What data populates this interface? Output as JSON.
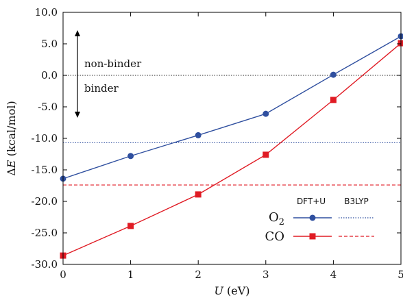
{
  "chart_data": {
    "type": "line",
    "xlabel": "U (eV)",
    "ylabel": "ΔE (kcal/mol)",
    "xlim": [
      0,
      5
    ],
    "ylim": [
      -30,
      10
    ],
    "xticks": [
      0,
      1,
      2,
      3,
      4,
      5
    ],
    "yticks": [
      10,
      5,
      0,
      -5,
      -10,
      -15,
      -20,
      -25,
      -30
    ],
    "ytick_labels": [
      "10.0",
      "5.0",
      "0.0",
      "-5.0",
      "-10.0",
      "-15.0",
      "-20.0",
      "-25.0",
      "-30.0"
    ],
    "series": [
      {
        "name": "O2",
        "method": "DFT+U",
        "color": "#2f4f9f",
        "marker": "circle",
        "x": [
          0,
          1,
          2,
          3,
          4,
          5
        ],
        "y": [
          -16.4,
          -12.8,
          -9.5,
          -6.1,
          0.1,
          6.2
        ]
      },
      {
        "name": "CO",
        "method": "DFT+U",
        "color": "#e01b24",
        "marker": "square",
        "x": [
          0,
          1,
          2,
          3,
          4,
          5
        ],
        "y": [
          -28.6,
          -23.9,
          -18.9,
          -12.6,
          -3.9,
          5.1
        ]
      }
    ],
    "reference_lines": [
      {
        "name": "O2",
        "method": "B3LYP",
        "value": -10.7,
        "color": "#2f4f9f",
        "style": "dotted"
      },
      {
        "name": "CO",
        "method": "B3LYP",
        "value": -17.4,
        "color": "#e01b24",
        "style": "dashed"
      },
      {
        "name": "zero",
        "value": 0,
        "color": "#555555",
        "style": "dotted"
      }
    ],
    "legend": {
      "placement": "bottom-right",
      "headers": [
        "DFT+U",
        "B3LYP"
      ],
      "entries": [
        "O",
        "CO"
      ],
      "o2_subscript": "2"
    },
    "annotations": {
      "upper": "non-binder",
      "lower": "binder",
      "arrow": "double-headed vertical"
    },
    "grid": false
  }
}
